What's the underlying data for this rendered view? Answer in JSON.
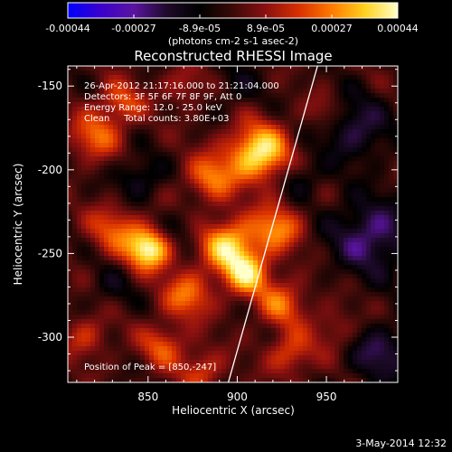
{
  "chart_data": {
    "type": "heatmap",
    "title": "Reconstructed RHESSI Image",
    "annotations": [
      "26-Apr-2012 21:17:16.000 to 21:21:04.000",
      "Detectors: 3F 5F 6F 7F 8F 9F, Att 0",
      "Energy Range: 12.0 - 25.0 keV",
      "Clean     Total counts: 3.80E+03"
    ],
    "peak_label": "Position of Peak = [850,-247]",
    "peak": [
      850,
      -247
    ],
    "xlabel": "Heliocentric X (arcsec)",
    "ylabel": "Heliocentric Y (arcsec)",
    "xlim": [
      805,
      990
    ],
    "ylim": [
      -327,
      -138
    ],
    "x_ticks": [
      850,
      900,
      950
    ],
    "y_ticks": [
      -150,
      -200,
      -250,
      -300
    ],
    "colorbar": {
      "ticks": [
        "-0.00044",
        "-0.00027",
        "-8.9e-05",
        "8.9e-05",
        "0.00027",
        "0.00044"
      ],
      "label": "(photons cm-2 s-1 asec-2)",
      "range": [
        -0.00044,
        0.00044
      ],
      "colors": [
        "#0000ff",
        "#3b00cc",
        "#5a14a0",
        "#1e0a2a",
        "#000000",
        "#3a0a08",
        "#8a1010",
        "#d83000",
        "#ff7a00",
        "#ffd21e",
        "#ffffc8"
      ]
    },
    "limb": [
      [
        895,
        -327
      ],
      [
        945,
        -138
      ]
    ]
  },
  "footer": {
    "timestamp": "3-May-2014 12:32"
  }
}
